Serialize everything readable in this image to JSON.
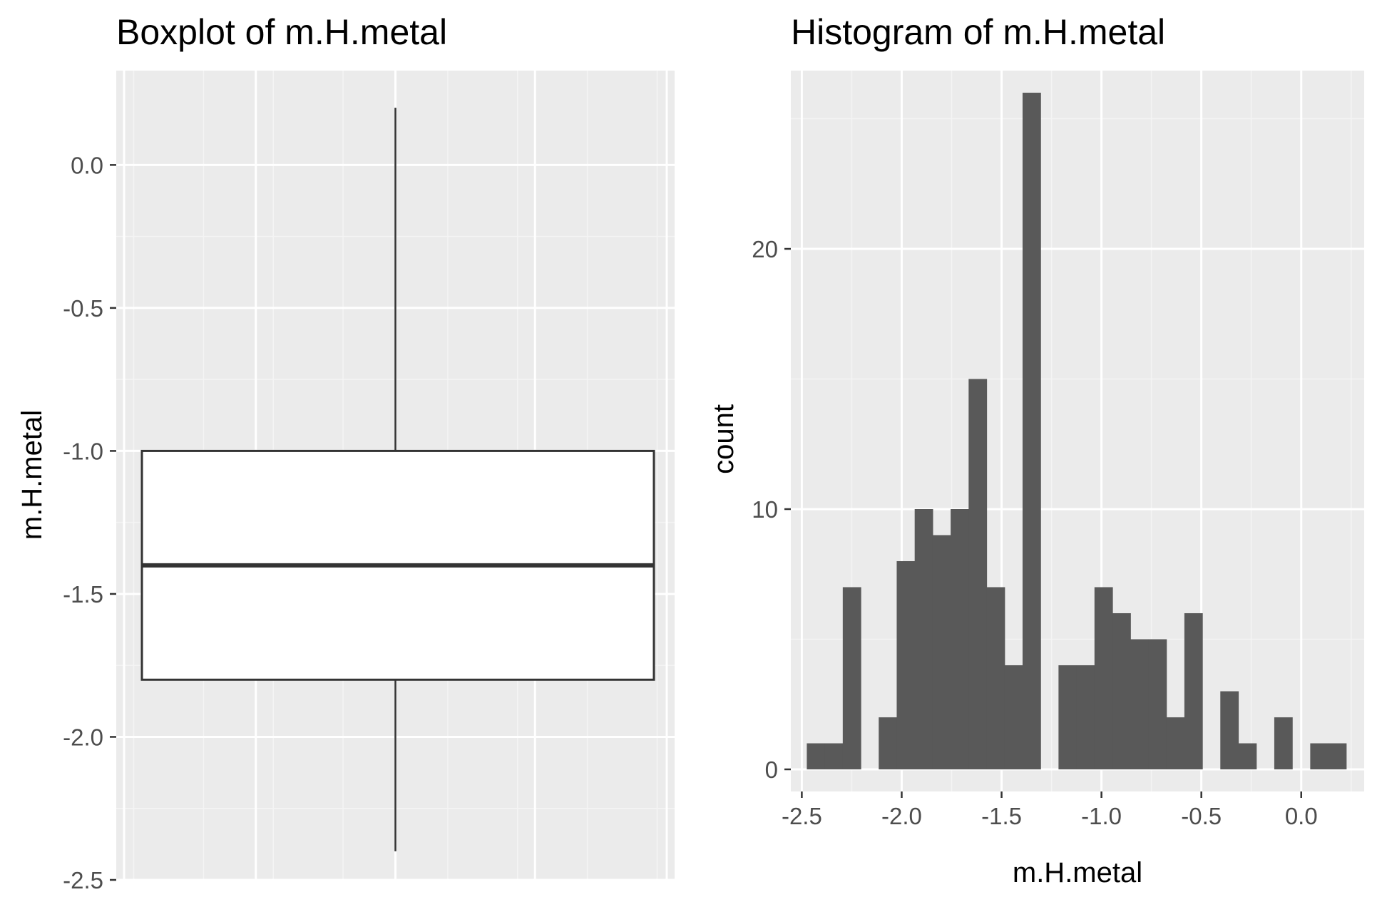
{
  "chart_data": [
    {
      "type": "boxplot",
      "title": "Boxplot of m.H.metal",
      "xlabel": "",
      "ylabel": "m.H.metal",
      "ylim": [
        -2.5,
        0.33
      ],
      "y_ticks": [
        "0.0",
        "-0.5",
        "-1.0",
        "-1.5",
        "-2.0",
        "-2.5"
      ],
      "y_tick_values": [
        0.0,
        -0.5,
        -1.0,
        -1.5,
        -2.0,
        -2.5
      ],
      "grid": true,
      "box": {
        "whisker_low": -2.4,
        "q1": -1.8,
        "median": -1.4,
        "q3": -1.0,
        "whisker_high": 0.2
      }
    },
    {
      "type": "bar",
      "subtype": "histogram",
      "title": "Histogram of m.H.metal",
      "xlabel": "m.H.metal",
      "ylabel": "count",
      "xlim": [
        -2.555,
        0.315
      ],
      "ylim": [
        -0.85,
        26.85
      ],
      "x_ticks": [
        "-2.5",
        "-2.0",
        "-1.5",
        "-1.0",
        "-0.5",
        "0.0"
      ],
      "x_tick_values": [
        -2.5,
        -2.0,
        -1.5,
        -1.0,
        -0.5,
        0.0
      ],
      "y_ticks": [
        "0",
        "10",
        "20"
      ],
      "y_tick_values": [
        0,
        10,
        20
      ],
      "grid": true,
      "bin_width": 0.09,
      "bin_start": -2.475,
      "counts": [
        1,
        1,
        7,
        0,
        2,
        8,
        10,
        9,
        10,
        15,
        7,
        4,
        26,
        0,
        4,
        4,
        7,
        6,
        5,
        5,
        2,
        6,
        0,
        3,
        1,
        0,
        2,
        0,
        1,
        1
      ],
      "bar_color": "#595959"
    }
  ]
}
